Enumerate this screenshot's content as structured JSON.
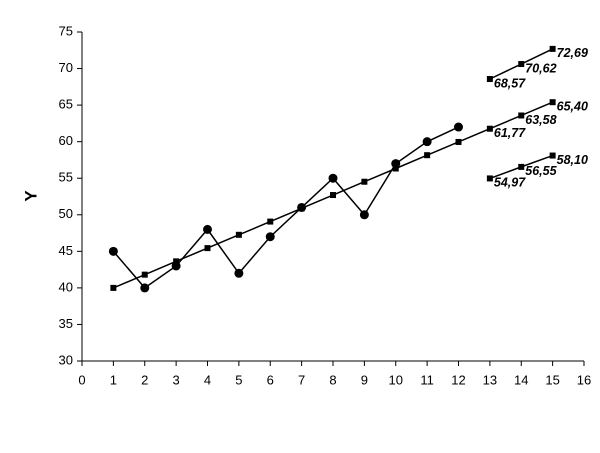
{
  "chart_data": {
    "type": "line",
    "ylabel": "Y",
    "x": [
      1,
      2,
      3,
      4,
      5,
      6,
      7,
      8,
      9,
      10,
      11,
      12,
      13,
      14,
      15
    ],
    "xlim": [
      0,
      16
    ],
    "xticks": [
      0,
      1,
      2,
      3,
      4,
      5,
      6,
      7,
      8,
      9,
      10,
      11,
      12,
      13,
      14,
      15,
      16
    ],
    "ylim": [
      30,
      75
    ],
    "yticks": [
      30,
      35,
      40,
      45,
      50,
      55,
      60,
      65,
      70,
      75
    ],
    "grid": false,
    "series": [
      {
        "color": "#000000",
        "marker": "circle",
        "values": [
          45,
          40,
          43,
          48,
          42,
          47,
          51,
          55,
          50,
          57,
          60,
          62,
          null,
          null,
          null
        ]
      },
      {
        "color": "#000000",
        "marker": "square",
        "values": [
          40.0,
          41.81,
          43.63,
          45.44,
          47.26,
          49.07,
          50.89,
          52.7,
          54.52,
          56.33,
          58.15,
          59.96,
          61.77,
          63.58,
          65.4
        ],
        "value_labels": [
          null,
          null,
          null,
          null,
          null,
          null,
          null,
          null,
          null,
          null,
          null,
          null,
          "61,77",
          "63,58",
          "65,40"
        ]
      },
      {
        "color": "#000000",
        "marker": "square",
        "values": [
          null,
          null,
          null,
          null,
          null,
          null,
          null,
          null,
          null,
          null,
          null,
          null,
          68.57,
          70.62,
          72.69
        ],
        "value_labels": [
          null,
          null,
          null,
          null,
          null,
          null,
          null,
          null,
          null,
          null,
          null,
          null,
          "68,57",
          "70,62",
          "72,69"
        ]
      },
      {
        "color": "#000000",
        "marker": "square",
        "values": [
          null,
          null,
          null,
          null,
          null,
          null,
          null,
          null,
          null,
          null,
          null,
          null,
          54.97,
          56.55,
          58.1
        ],
        "value_labels": [
          null,
          null,
          null,
          null,
          null,
          null,
          null,
          null,
          null,
          null,
          null,
          null,
          "54,97",
          "56,55",
          "58,10"
        ]
      }
    ]
  }
}
